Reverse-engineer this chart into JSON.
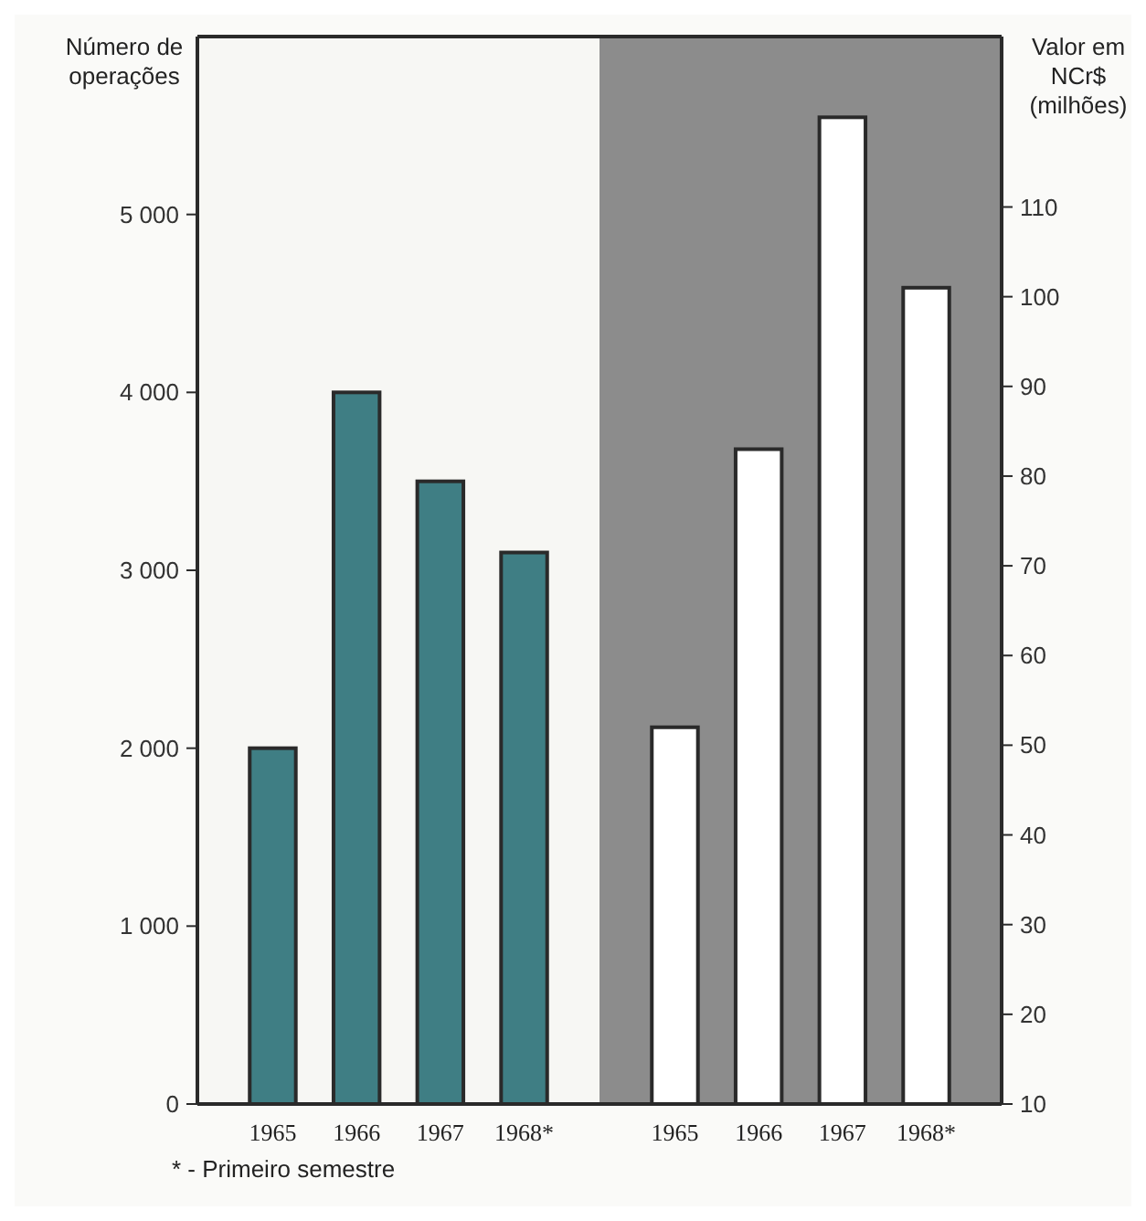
{
  "chart_data": [
    {
      "type": "bar",
      "ylabel": "Número de operações",
      "categories": [
        "1965",
        "1966",
        "1967",
        "1968*"
      ],
      "values": [
        2000,
        4000,
        3500,
        3100
      ],
      "color": "#3f7e84",
      "ylim": [
        0,
        6000
      ],
      "yticks": [
        0,
        {
          "value": 1000,
          "label": "1 000"
        },
        {
          "value": 2000,
          "label": "2 000"
        },
        {
          "value": 3000,
          "label": "3 000"
        },
        {
          "value": 4000,
          "label": "4 000"
        },
        {
          "value": 5000,
          "label": "5 000"
        }
      ],
      "grid": false,
      "annotations": [
        "* - Primeiro semestre"
      ]
    },
    {
      "type": "bar",
      "ylabel": "Valor em NCr$ (milhões)",
      "categories": [
        "1965",
        "1966",
        "1967",
        "1968*"
      ],
      "values": [
        52,
        83,
        120,
        101
      ],
      "color": "#ffffff",
      "ylim": [
        10,
        129
      ],
      "yticks": [
        10,
        20,
        30,
        40,
        50,
        60,
        70,
        80,
        90,
        100,
        110
      ],
      "grid": false
    }
  ]
}
